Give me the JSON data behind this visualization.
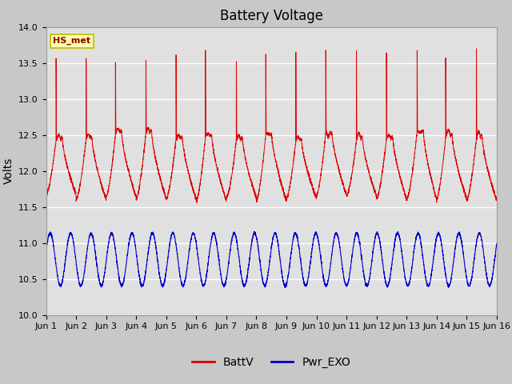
{
  "title": "Battery Voltage",
  "ylabel": "Volts",
  "ylim": [
    10.0,
    14.0
  ],
  "yticks": [
    10.0,
    10.5,
    11.0,
    11.5,
    12.0,
    12.5,
    13.0,
    13.5,
    14.0
  ],
  "xtick_labels": [
    "Jun 1",
    "Jun 2",
    "Jun 3",
    "Jun 4",
    "Jun 5",
    "Jun 6",
    "Jun 7",
    "Jun 8",
    "Jun 9",
    "Jun 10",
    "Jun 11",
    "Jun 12",
    "Jun 13",
    "Jun 14",
    "Jun 15",
    "Jun 16"
  ],
  "fig_bg_color": "#c8c8c8",
  "plot_bg_color": "#e0e0e0",
  "batt_color": "#dd0000",
  "exo_color": "#0000cc",
  "legend_label_batt": "BattV",
  "legend_label_exo": "Pwr_EXO",
  "annotation_text": "HS_met",
  "annotation_bg": "#ffffaa",
  "annotation_border": "#bbbb00",
  "title_fontsize": 12,
  "axis_fontsize": 10,
  "tick_fontsize": 8,
  "legend_fontsize": 10,
  "n_days": 15,
  "pts_per_day": 300
}
